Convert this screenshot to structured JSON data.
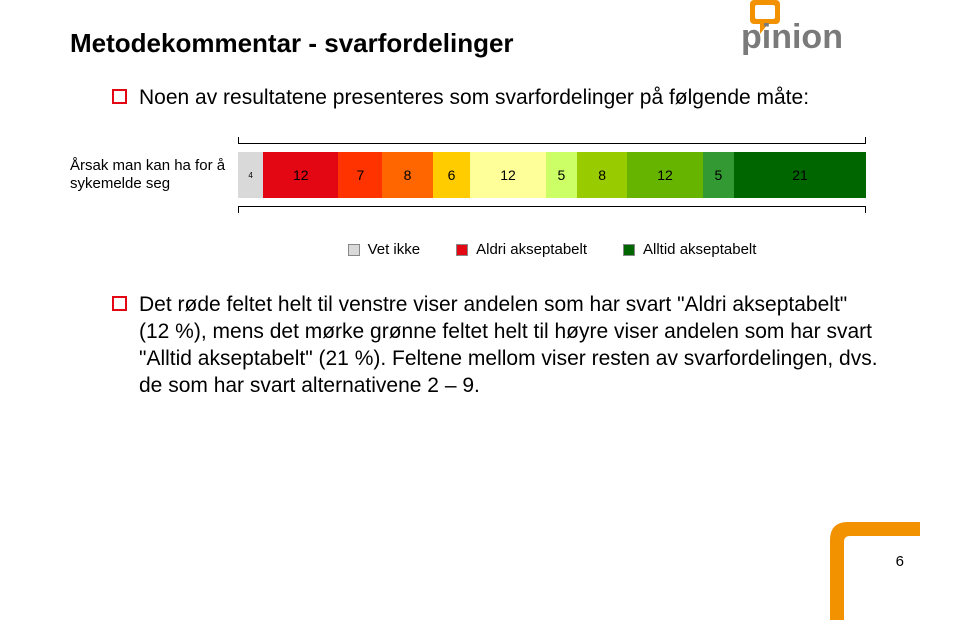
{
  "title": "Metodekommentar - svarfordelinger",
  "intro_bullet": "Noen av resultatene presenteres som svarfordelinger på følgende måte:",
  "page_number": "6",
  "logo": {
    "text": "pinion",
    "text_color": "#7a7a7a",
    "accent_color": "#f39200"
  },
  "chart": {
    "type": "stacked-bar",
    "row_label": "Årsak man kan ha for å sykemelde seg",
    "segments": [
      {
        "label": "4",
        "value": 4,
        "color": "#d9d9d9",
        "value_fontsize": 8
      },
      {
        "label": "12",
        "value": 12,
        "color": "#e30613",
        "value_fontsize": 14
      },
      {
        "label": "7",
        "value": 7,
        "color": "#ff3300",
        "value_fontsize": 14
      },
      {
        "label": "8",
        "value": 8,
        "color": "#ff6600",
        "value_fontsize": 14
      },
      {
        "label": "6",
        "value": 6,
        "color": "#ffcc00",
        "value_fontsize": 14
      },
      {
        "label": "12",
        "value": 12,
        "color": "#ffff99",
        "value_fontsize": 14
      },
      {
        "label": "5",
        "value": 5,
        "color": "#ccff66",
        "value_fontsize": 14
      },
      {
        "label": "8",
        "value": 8,
        "color": "#99cc00",
        "value_fontsize": 14
      },
      {
        "label": "12",
        "value": 12,
        "color": "#66b300",
        "value_fontsize": 14
      },
      {
        "label": "5",
        "value": 5,
        "color": "#339933",
        "value_fontsize": 14
      },
      {
        "label": "21",
        "value": 21,
        "color": "#006600",
        "value_fontsize": 14
      }
    ],
    "total": 100,
    "axis_color": "#000000"
  },
  "legend": {
    "items": [
      {
        "label": "Vet ikke",
        "color": "#d9d9d9"
      },
      {
        "label": "Aldri akseptabelt",
        "color": "#e30613"
      },
      {
        "label": "Alltid akseptabelt",
        "color": "#006600"
      }
    ]
  },
  "body_bullet": "Det røde feltet helt til venstre viser andelen som har svart \"Aldri akseptabelt\" (12 %), mens det mørke grønne feltet helt til høyre viser andelen som har svart \"Alltid akseptabelt\" (21 %). Feltene mellom viser resten av svarfordelingen, dvs. de som har svart alternativene 2 – 9.",
  "corner_accent_color": "#f39200"
}
